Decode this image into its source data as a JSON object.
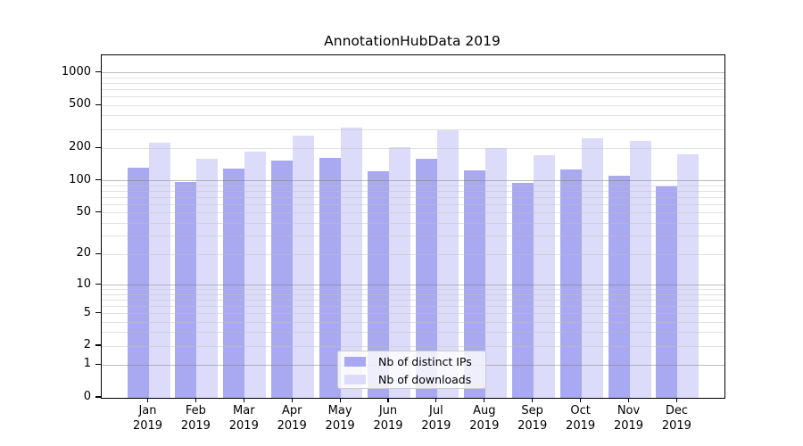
{
  "title": "AnnotationHubData 2019",
  "chart_data": {
    "type": "bar",
    "title": "AnnotationHubData 2019",
    "categories": [
      "Jan 2019",
      "Feb 2019",
      "Mar 2019",
      "Apr 2019",
      "May 2019",
      "Jun 2019",
      "Jul 2019",
      "Aug 2019",
      "Sep 2019",
      "Oct 2019",
      "Nov 2019",
      "Dec 2019"
    ],
    "series": [
      {
        "name": "Nb of distinct IPs",
        "color": "#a9a9f1",
        "values": [
          133,
          97,
          131,
          154,
          164,
          123,
          160,
          125,
          95,
          128,
          111,
          88
        ]
      },
      {
        "name": "Nb of downloads",
        "color": "#dcdcfa",
        "values": [
          224,
          161,
          188,
          262,
          310,
          207,
          293,
          203,
          174,
          248,
          236,
          177
        ]
      }
    ],
    "xlabel": "",
    "ylabel": "",
    "y_scale": "log10(value+1)",
    "y_ticks": [
      0,
      1,
      2,
      5,
      10,
      20,
      50,
      100,
      200,
      500,
      1000
    ],
    "ylim": [
      0,
      1455
    ],
    "grid": "horizontal, major lines at powers of 10 and minor lines at 2-9 multiples, drawn over bars",
    "legend_position": "inside bottom center",
    "axis_color": "#000000",
    "gridline_major_color": "#c7c7c7",
    "gridline_minor_color": "#e9e9e9",
    "background_color": "#ffffff"
  }
}
